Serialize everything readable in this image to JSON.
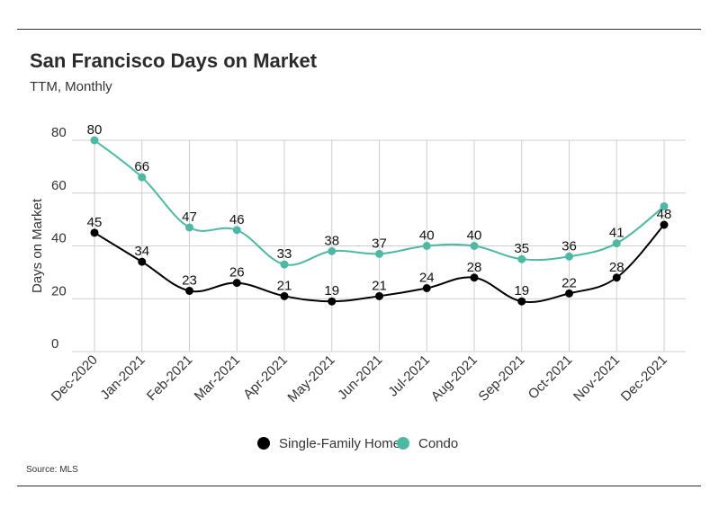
{
  "title": "San Francisco Days on Market",
  "subtitle": "TTM, Monthly",
  "source": "Source:  MLS",
  "colors": {
    "single_family": "#000000",
    "condo": "#4fb8a4",
    "grid": "#cfcfcf"
  },
  "chart_data": {
    "type": "line",
    "title": "San Francisco Days on Market",
    "subtitle": "TTM, Monthly",
    "xlabel": "",
    "ylabel": "Days on Market",
    "ylim": [
      0,
      80
    ],
    "yticks": [
      0,
      20,
      40,
      60,
      80
    ],
    "grid": true,
    "legend": "bottom-center",
    "categories": [
      "Dec-2020",
      "Jan-2021",
      "Feb-2021",
      "Mar-2021",
      "Apr-2021",
      "May-2021",
      "Jun-2021",
      "Jul-2021",
      "Aug-2021",
      "Sep-2021",
      "Oct-2021",
      "Nov-2021",
      "Dec-2021"
    ],
    "series": [
      {
        "name": "Single-Family Home",
        "values": [
          45,
          34,
          23,
          26,
          21,
          19,
          21,
          24,
          28,
          19,
          22,
          28,
          48
        ]
      },
      {
        "name": "Condo",
        "values": [
          80,
          66,
          47,
          46,
          33,
          38,
          37,
          40,
          40,
          35,
          36,
          41,
          55
        ],
        "value_labels": [
          "80",
          "66",
          "47",
          "46",
          "33",
          "38",
          "37",
          "40",
          "40",
          "35",
          "36",
          "41",
          ""
        ]
      }
    ]
  }
}
